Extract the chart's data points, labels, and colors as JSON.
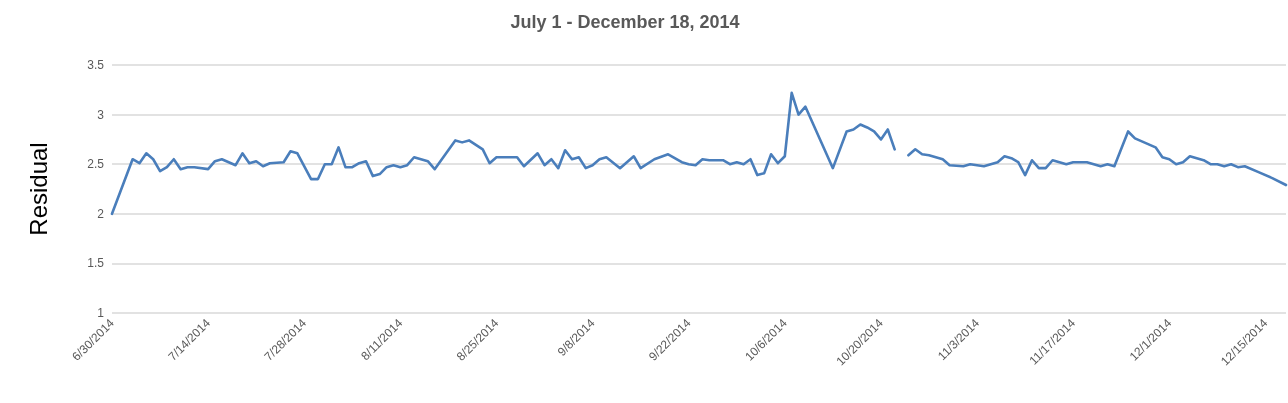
{
  "chart_data": {
    "type": "line",
    "title": "July 1 - December 18, 2014",
    "ylabel": "Residual",
    "x": [
      "2014-06-30",
      "2014-07-03",
      "2014-07-04",
      "2014-07-05",
      "2014-07-06",
      "2014-07-07",
      "2014-07-08",
      "2014-07-09",
      "2014-07-10",
      "2014-07-11",
      "2014-07-12",
      "2014-07-14",
      "2014-07-15",
      "2014-07-16",
      "2014-07-18",
      "2014-07-19",
      "2014-07-20",
      "2014-07-21",
      "2014-07-22",
      "2014-07-23",
      "2014-07-25",
      "2014-07-26",
      "2014-07-27",
      "2014-07-29",
      "2014-07-30",
      "2014-07-31",
      "2014-08-01",
      "2014-08-02",
      "2014-08-03",
      "2014-08-04",
      "2014-08-05",
      "2014-08-06",
      "2014-08-07",
      "2014-08-08",
      "2014-08-09",
      "2014-08-10",
      "2014-08-11",
      "2014-08-12",
      "2014-08-13",
      "2014-08-14",
      "2014-08-15",
      "2014-08-16",
      "2014-08-19",
      "2014-08-20",
      "2014-08-21",
      "2014-08-23",
      "2014-08-24",
      "2014-08-25",
      "2014-08-28",
      "2014-08-29",
      "2014-08-31",
      "2014-09-01",
      "2014-09-02",
      "2014-09-03",
      "2014-09-04",
      "2014-09-05",
      "2014-09-06",
      "2014-09-07",
      "2014-09-08",
      "2014-09-09",
      "2014-09-10",
      "2014-09-12",
      "2014-09-14",
      "2014-09-15",
      "2014-09-17",
      "2014-09-19",
      "2014-09-21",
      "2014-09-22",
      "2014-09-23",
      "2014-09-24",
      "2014-09-25",
      "2014-09-27",
      "2014-09-28",
      "2014-09-29",
      "2014-09-30",
      "2014-10-01",
      "2014-10-02",
      "2014-10-03",
      "2014-10-04",
      "2014-10-05",
      "2014-10-06",
      "2014-10-07",
      "2014-10-08",
      "2014-10-09",
      "2014-10-13",
      "2014-10-15",
      "2014-10-16",
      "2014-10-17",
      "2014-10-18",
      "2014-10-19",
      "2014-10-20",
      "2014-10-21",
      "2014-10-22",
      "2014-10-23",
      "2014-10-24",
      "2014-10-25",
      "2014-10-26",
      "2014-10-27",
      "2014-10-29",
      "2014-10-30",
      "2014-11-01",
      "2014-11-02",
      "2014-11-04",
      "2014-11-06",
      "2014-11-07",
      "2014-11-08",
      "2014-11-09",
      "2014-11-10",
      "2014-11-11",
      "2014-11-12",
      "2014-11-13",
      "2014-11-14",
      "2014-11-15",
      "2014-11-16",
      "2014-11-17",
      "2014-11-19",
      "2014-11-21",
      "2014-11-22",
      "2014-11-23",
      "2014-11-25",
      "2014-11-26",
      "2014-11-27",
      "2014-11-29",
      "2014-11-30",
      "2014-12-01",
      "2014-12-02",
      "2014-12-03",
      "2014-12-04",
      "2014-12-06",
      "2014-12-07",
      "2014-12-08",
      "2014-12-09",
      "2014-12-10",
      "2014-12-11",
      "2014-12-12",
      "2014-12-14",
      "2014-12-16",
      "2014-12-18"
    ],
    "series": [
      {
        "color": "#4a7ebb",
        "values": [
          2.0,
          2.55,
          2.51,
          2.61,
          2.55,
          2.43,
          2.47,
          2.55,
          2.45,
          2.47,
          2.47,
          2.45,
          2.53,
          2.55,
          2.49,
          2.61,
          2.51,
          2.53,
          2.48,
          2.51,
          2.52,
          2.63,
          2.61,
          2.35,
          2.35,
          2.5,
          2.5,
          2.67,
          2.47,
          2.47,
          2.51,
          2.53,
          2.38,
          2.4,
          2.47,
          2.49,
          2.47,
          2.49,
          2.57,
          2.55,
          2.53,
          2.45,
          2.74,
          2.72,
          2.74,
          2.65,
          2.51,
          2.57,
          2.57,
          2.48,
          2.61,
          2.49,
          2.55,
          2.46,
          2.64,
          2.55,
          2.57,
          2.46,
          2.49,
          2.55,
          2.57,
          2.46,
          2.58,
          2.46,
          2.55,
          2.6,
          2.52,
          2.5,
          2.49,
          2.55,
          2.54,
          2.54,
          2.5,
          2.52,
          2.5,
          2.55,
          2.39,
          2.41,
          2.6,
          2.51,
          2.58,
          3.22,
          3.0,
          3.08,
          2.46,
          2.83,
          2.85,
          2.9,
          2.87,
          2.83,
          2.75,
          2.85,
          2.65,
          null,
          2.59,
          2.65,
          2.6,
          2.59,
          2.55,
          2.49,
          2.48,
          2.5,
          2.48,
          2.52,
          2.58,
          2.56,
          2.52,
          2.39,
          2.54,
          2.46,
          2.46,
          2.54,
          2.52,
          2.5,
          2.52,
          2.52,
          2.48,
          2.5,
          2.48,
          2.83,
          2.76,
          2.73,
          2.67,
          2.57,
          2.55,
          2.5,
          2.52,
          2.58,
          2.54,
          2.5,
          2.5,
          2.48,
          2.5,
          2.47,
          2.48,
          2.42,
          2.36,
          2.29
        ]
      }
    ],
    "xlim": [
      "2014-06-30",
      "2014-12-18"
    ],
    "xticks": [
      {
        "value": "2014-06-30",
        "label": "6/30/2014"
      },
      {
        "value": "2014-07-14",
        "label": "7/14/2014"
      },
      {
        "value": "2014-07-28",
        "label": "7/28/2014"
      },
      {
        "value": "2014-08-11",
        "label": "8/11/2014"
      },
      {
        "value": "2014-08-25",
        "label": "8/25/2014"
      },
      {
        "value": "2014-09-08",
        "label": "9/8/2014"
      },
      {
        "value": "2014-09-22",
        "label": "9/22/2014"
      },
      {
        "value": "2014-10-06",
        "label": "10/6/2014"
      },
      {
        "value": "2014-10-20",
        "label": "10/20/2014"
      },
      {
        "value": "2014-11-03",
        "label": "11/3/2014"
      },
      {
        "value": "2014-11-17",
        "label": "11/17/2014"
      },
      {
        "value": "2014-12-01",
        "label": "12/1/2014"
      },
      {
        "value": "2014-12-15",
        "label": "12/15/2014"
      }
    ],
    "ylim": [
      1,
      3.5
    ],
    "yticks": [
      1,
      1.5,
      2,
      2.5,
      3,
      3.5
    ],
    "grid": "y",
    "marker": "none",
    "line_style": "solid"
  }
}
